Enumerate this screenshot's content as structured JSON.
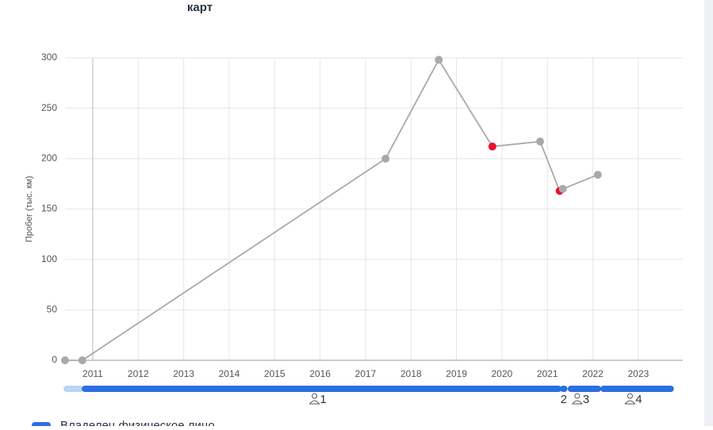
{
  "chart_data": {
    "type": "line",
    "title": "карт",
    "y_label": "Пробег (тыс. км)",
    "x": [
      2010.39,
      2010.77,
      2017.44,
      2018.61,
      2019.79,
      2020.84,
      2021.27,
      2021.34,
      2022.11
    ],
    "series": [
      {
        "name": "Пробег",
        "color": "#a9a9a9",
        "values": [
          0,
          0,
          200,
          298,
          212,
          217,
          168,
          170,
          184
        ],
        "point_colors": [
          "#a9a9a9",
          "#a9a9a9",
          "#a9a9a9",
          "#a9a9a9",
          "#e8112d",
          "#a9a9a9",
          "#e8112d",
          "#a9a9a9",
          "#a9a9a9"
        ]
      }
    ],
    "xlim": [
      2010.39,
      2023.98
    ],
    "xticks": [
      2011,
      2012,
      2013,
      2014,
      2015,
      2016,
      2017,
      2018,
      2019,
      2020,
      2021,
      2022,
      2023
    ],
    "ylim": [
      0,
      300
    ],
    "yticks": [
      0,
      50,
      100,
      150,
      200,
      250,
      300
    ],
    "grid": true,
    "owners": [
      {
        "start": 2010.41,
        "end": 2010.74,
        "color": "#b9d4f5"
      },
      {
        "label": "1",
        "start": 2010.81,
        "end": 2021.26,
        "color": "#2b6fe0"
      },
      {
        "label": "2",
        "start": 2021.33,
        "end": 2021.39,
        "color": "#2b6fe0"
      },
      {
        "label": "3",
        "start": 2021.5,
        "end": 2022.13,
        "color": "#2b6fe0"
      },
      {
        "label": "4",
        "start": 2022.22,
        "end": 2023.73,
        "color": "#2b6fe0"
      }
    ],
    "legend": "Владелец физическое лицо"
  }
}
